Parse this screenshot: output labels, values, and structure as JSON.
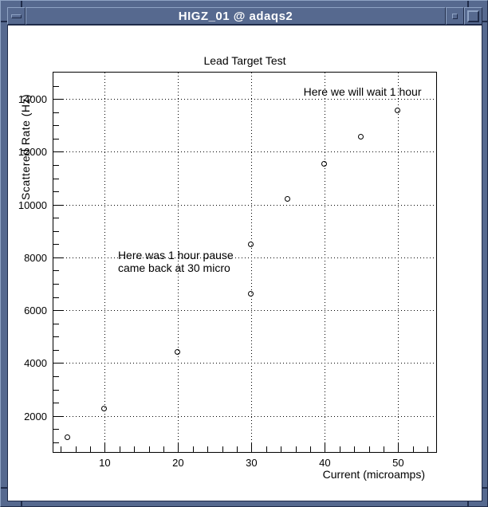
{
  "window": {
    "title": "HIGZ_01 @ adaqs2",
    "controls": [
      {
        "name": "window-menu-button",
        "icon": "horizontal-bar-icon"
      },
      {
        "name": "restore-button",
        "icon": "small-square-icon"
      },
      {
        "name": "maximize-button",
        "icon": "large-square-icon"
      }
    ],
    "colors": {
      "frame": "#56698f",
      "bevel_light": "#8fa3c4",
      "bevel_dark": "#1f2b49",
      "title_text": "#ffffff",
      "canvas": "#ffffff",
      "ink": "#000000"
    }
  },
  "chart_data": {
    "type": "scatter",
    "title": "Lead Target Test",
    "xlabel": "Current (microamps)",
    "ylabel": "Scattered Rate (Hz)",
    "xlim": [
      3,
      55.4
    ],
    "ylim": [
      570,
      15000
    ],
    "x_major_ticks": [
      10,
      20,
      30,
      40,
      50
    ],
    "x_minor_step": 2,
    "y_major_ticks": [
      2000,
      4000,
      6000,
      8000,
      10000,
      12000,
      14000
    ],
    "y_minor_step": 500,
    "grid": "dotted-at-major-ticks",
    "legend": "none",
    "marker": "open-circle",
    "points": [
      [
        5,
        1150
      ],
      [
        10,
        2250
      ],
      [
        20,
        4400
      ],
      [
        30,
        6600
      ],
      [
        30,
        8450
      ],
      [
        35,
        10200
      ],
      [
        40,
        11500
      ],
      [
        45,
        12550
      ],
      [
        50,
        13550
      ]
    ],
    "annotations": [
      {
        "text": "Here we will wait 1 hour",
        "x": 37.1,
        "y": 14520
      },
      {
        "text": "Here was 1 hour pause\ncame back at 30 micro",
        "x": 11.8,
        "y": 8330
      }
    ]
  }
}
